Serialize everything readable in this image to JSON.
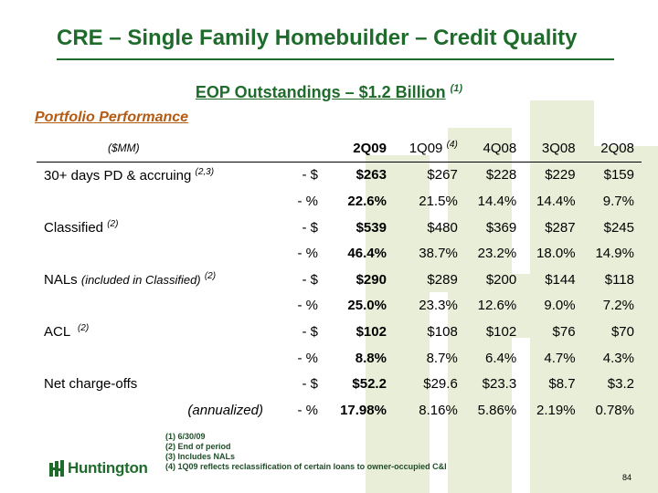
{
  "title": "CRE – Single Family Homebuilder – Credit Quality",
  "subtitle": {
    "main": "EOP Outstandings – $1.2 Billion",
    "note": "(1)"
  },
  "section_title": "Portfolio Performance",
  "table": {
    "units_header": "($MM)",
    "columns": [
      "2Q09",
      "1Q09",
      "4Q08",
      "3Q08",
      "2Q08"
    ],
    "col_1q09_note": "(4)",
    "rows": [
      {
        "label": "30+ days PD & accruing",
        "note": "(2,3)",
        "unit": "- $",
        "values": [
          "$263",
          "$267",
          "$228",
          "$229",
          "$159"
        ]
      },
      {
        "label": "",
        "note": "",
        "unit": "- %",
        "values": [
          "22.6%",
          "21.5%",
          "14.4%",
          "14.4%",
          "9.7%"
        ]
      },
      {
        "label": "Classified",
        "note": "(2)",
        "unit": "- $",
        "values": [
          "$539",
          "$480",
          "$369",
          "$287",
          "$245"
        ]
      },
      {
        "label": "",
        "note": "",
        "unit": "- %",
        "values": [
          "46.4%",
          "38.7%",
          "23.2%",
          "18.0%",
          "14.9%"
        ]
      },
      {
        "label": "NALs",
        "label_ital": "(included in Classified)",
        "note": "(2)",
        "unit": "- $",
        "values": [
          "$290",
          "$289",
          "$200",
          "$144",
          "$118"
        ]
      },
      {
        "label": "",
        "note": "",
        "unit": "- %",
        "values": [
          "25.0%",
          "23.3%",
          "12.6%",
          "9.0%",
          "7.2%"
        ]
      },
      {
        "label": "ACL",
        "note": "(2)",
        "unit": "- $",
        "values": [
          "$102",
          "$108",
          "$102",
          "$76",
          "$70"
        ]
      },
      {
        "label": "",
        "note": "",
        "unit": "- %",
        "values": [
          "8.8%",
          "8.7%",
          "6.4%",
          "4.7%",
          "4.3%"
        ]
      },
      {
        "label": "Net charge-offs",
        "note": "",
        "unit": "- $",
        "values": [
          "$52.2",
          "$29.6",
          "$23.3",
          "$8.7",
          "$3.2"
        ]
      },
      {
        "label": "(annualized)",
        "note": "",
        "unit": "- %",
        "values": [
          "17.98%",
          "8.16%",
          "5.86%",
          "2.19%",
          "0.78%"
        ]
      }
    ]
  },
  "footnotes": [
    "(1)  6/30/09",
    "(2)  End of period",
    "(3)  Includes NALs",
    "(4)  1Q09 reflects reclassification of certain loans to owner-occupied C&I"
  ],
  "logo_text": "Huntington",
  "page_number": "84",
  "colors": {
    "brand_green": "#1f6b2c",
    "section_orange": "#b35b12",
    "watermark": "#e9eed8"
  }
}
